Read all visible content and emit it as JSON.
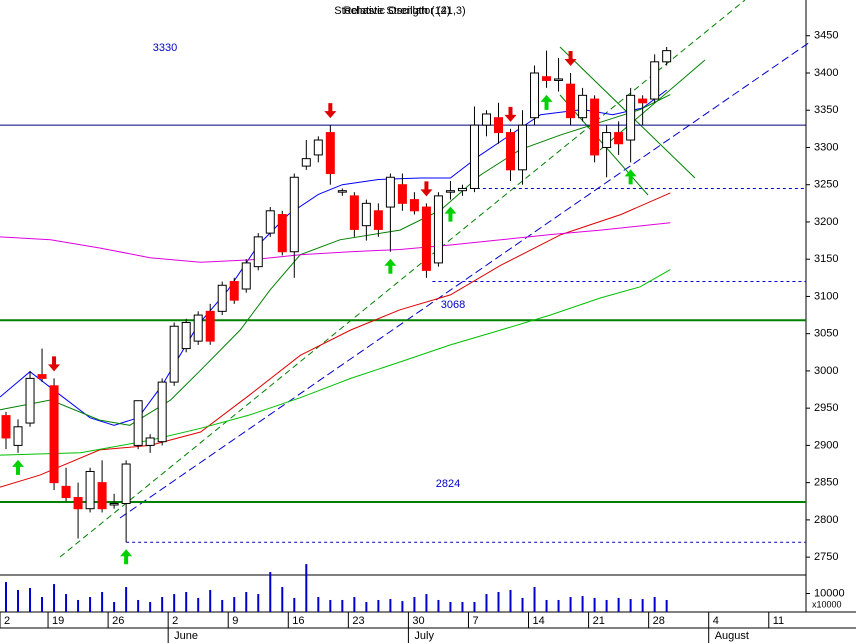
{
  "chart_data": {
    "type": "candlestick",
    "title": "Relative Strength (14)",
    "subtitle": "Stochastic Oscillator (21,3)",
    "ylim": [
      2726,
      3498
    ],
    "yticks": [
      2750,
      2800,
      2850,
      2900,
      2950,
      3000,
      3050,
      3100,
      3150,
      3200,
      3250,
      3300,
      3350,
      3400,
      3450
    ],
    "xlim": [
      -0.5,
      66.6
    ],
    "xticks": [
      {
        "value": -0.5,
        "label": "2"
      },
      {
        "value": 3.5,
        "label": "19"
      },
      {
        "value": 8.5,
        "label": "26"
      },
      {
        "value": 13.5,
        "label": "2"
      },
      {
        "value": 18.5,
        "label": "9"
      },
      {
        "value": 23.5,
        "label": "16"
      },
      {
        "value": 28.5,
        "label": "23"
      },
      {
        "value": 33.5,
        "label": "30"
      },
      {
        "value": 38.5,
        "label": "7"
      },
      {
        "value": 43.5,
        "label": "14"
      },
      {
        "value": 48.5,
        "label": "21"
      },
      {
        "value": 53.5,
        "label": "28"
      },
      {
        "value": 58.5,
        "label": "4"
      },
      {
        "value": 63.5,
        "label": "11"
      }
    ],
    "months": [
      {
        "value": 13.5,
        "label": "June"
      },
      {
        "value": 33.5,
        "label": "July"
      },
      {
        "value": 58.5,
        "label": "August"
      }
    ],
    "up_color": "#ffffff",
    "down_color": "#ff0000",
    "open": [
      2940,
      2900,
      2930,
      2995,
      2980,
      2845,
      2830,
      2815,
      2850,
      2820,
      2822,
      2900,
      2900,
      2905,
      2985,
      3030,
      3040,
      3080,
      3080,
      3120,
      3110,
      3140,
      3185,
      3210,
      3160,
      3275,
      3290,
      3320,
      3240,
      3235,
      3195,
      3215,
      3220,
      3250,
      3230,
      3220,
      3145,
      3240,
      3242,
      3245,
      3330,
      3340,
      3320,
      3270,
      3340,
      3395,
      3390,
      3385,
      3340,
      3365,
      3300,
      3320,
      3310,
      3365,
      3365,
      3415
    ],
    "high": [
      2945,
      2935,
      3000,
      3030,
      2990,
      2870,
      2850,
      2870,
      2880,
      2835,
      2880,
      2960,
      2915,
      2990,
      3065,
      3070,
      3080,
      3090,
      3120,
      3125,
      3150,
      3185,
      3220,
      3215,
      3265,
      3310,
      3315,
      3330,
      3245,
      3240,
      3230,
      3225,
      3265,
      3265,
      3240,
      3225,
      3240,
      3255,
      3250,
      3355,
      3350,
      3360,
      3325,
      3350,
      3410,
      3430,
      3420,
      3400,
      3380,
      3370,
      3330,
      3335,
      3380,
      3370,
      3425,
      3435
    ],
    "low": [
      2895,
      2890,
      2925,
      2985,
      2840,
      2825,
      2775,
      2810,
      2810,
      2815,
      2770,
      2895,
      2890,
      2900,
      2980,
      3025,
      3035,
      3035,
      3075,
      3090,
      3105,
      3135,
      3180,
      3155,
      3125,
      3270,
      3280,
      3250,
      3235,
      3180,
      3175,
      3180,
      3160,
      3215,
      3210,
      3125,
      3140,
      3230,
      3235,
      3240,
      3315,
      3305,
      3255,
      3250,
      3330,
      3380,
      3375,
      3330,
      3335,
      3280,
      3260,
      3290,
      3280,
      3330,
      3360,
      3410
    ],
    "close": [
      2910,
      2925,
      2990,
      2990,
      2850,
      2830,
      2815,
      2865,
      2815,
      2822,
      2875,
      2960,
      2910,
      2985,
      3060,
      3065,
      3075,
      3040,
      3115,
      3095,
      3145,
      3180,
      3215,
      3160,
      3260,
      3285,
      3310,
      3265,
      3242,
      3190,
      3225,
      3190,
      3260,
      3225,
      3215,
      3135,
      3235,
      3242,
      3245,
      3330,
      3345,
      3320,
      3270,
      3330,
      3400,
      3390,
      3392,
      3340,
      3370,
      3290,
      3320,
      3305,
      3370,
      3360,
      3415,
      3430
    ],
    "volume": [
      16200,
      11900,
      13000,
      8100,
      15100,
      9700,
      6500,
      8100,
      10800,
      5400,
      13500,
      6500,
      5400,
      8100,
      9700,
      10800,
      7600,
      11900,
      6500,
      8100,
      10800,
      9700,
      21600,
      13500,
      7600,
      25900,
      8100,
      6500,
      6500,
      8100,
      5400,
      6500,
      7000,
      5900,
      8100,
      9700,
      6500,
      5400,
      5400,
      5400,
      9700,
      10800,
      11900,
      7600,
      13500,
      6500,
      6500,
      8100,
      8600,
      7600,
      6500,
      7600,
      7000,
      7000,
      8100,
      6500
    ],
    "volume_ylim": [
      0,
      20000
    ],
    "volume_ticks": [
      10000
    ],
    "volume_unit": "x10000",
    "overlays": [
      {
        "color": "#0000ff",
        "x": [
          -0.5,
          2,
          4,
          7,
          9,
          11,
          13,
          16,
          18.5,
          21,
          23.5,
          26,
          28,
          31,
          34.5,
          37,
          39.5,
          42,
          44.5,
          48,
          50.5,
          53,
          55
        ],
        "values": [
          2965,
          2999,
          2974,
          2937,
          2927,
          2937,
          2981,
          3062,
          3109,
          3169,
          3210,
          3237,
          3250,
          3257,
          3259,
          3259,
          3290,
          3317,
          3344,
          3351,
          3344,
          3353,
          3377
        ]
      },
      {
        "color": "#008000",
        "x": [
          -0.5,
          3.7,
          7.8,
          10.3,
          13.7,
          16.2,
          19.5,
          22,
          24.5,
          27.8,
          32.8,
          36.2,
          39.5,
          42.8,
          46.2,
          49.5,
          52.8,
          55.3
        ],
        "values": [
          2948,
          2961,
          2934,
          2927,
          2961,
          3001,
          3055,
          3109,
          3156,
          3176,
          3189,
          3216,
          3263,
          3297,
          3317,
          3334,
          3351,
          3371
        ]
      },
      {
        "color": "#e00000",
        "x": [
          -0.5,
          2.8,
          7.8,
          12,
          16.2,
          20.3,
          24.5,
          28.7,
          32.8,
          37,
          41.2,
          46.2,
          51.2,
          55.3
        ],
        "values": [
          2844,
          2860,
          2894,
          2900,
          2918,
          2968,
          3021,
          3055,
          3082,
          3102,
          3142,
          3183,
          3210,
          3239
        ]
      },
      {
        "color": "#00c000",
        "x": [
          -0.5,
          6.2,
          12,
          16.2,
          20.3,
          24.5,
          28.7,
          32.8,
          37,
          41.2,
          45.3,
          49.5,
          52.8,
          55.3
        ],
        "values": [
          2887,
          2890,
          2907,
          2923,
          2941,
          2964,
          2990,
          3012,
          3035,
          3055,
          3075,
          3098,
          3113,
          3136
        ]
      },
      {
        "color": "#e000e0",
        "x": [
          -0.5,
          3.7,
          7.8,
          12,
          16.2,
          20.3,
          24.5,
          28.7,
          32.8,
          37,
          41.2,
          45.3,
          49.5,
          55.3
        ],
        "values": [
          3180,
          3176,
          3165,
          3152,
          3146,
          3149,
          3156,
          3160,
          3163,
          3169,
          3176,
          3183,
          3189,
          3199
        ]
      }
    ],
    "levels": [
      {
        "value": 3330,
        "color": "#000080",
        "width": 1
      },
      {
        "value": 3068,
        "color": "#008000",
        "width": 2
      },
      {
        "value": 2824,
        "color": "#008000",
        "width": 2
      },
      {
        "value": 3245,
        "color": "#0000cc",
        "width": 1,
        "dashed": true,
        "from": 38.7
      },
      {
        "value": 3120,
        "color": "#0000cc",
        "width": 1,
        "dashed": true,
        "from": 35.5
      },
      {
        "value": 2770,
        "color": "#0000cc",
        "width": 1,
        "dashed": true,
        "from": 10
      }
    ],
    "signals": {
      "sell": [
        4,
        27,
        35,
        42,
        47
      ],
      "buy": [
        1,
        10,
        32,
        37,
        45,
        52
      ]
    }
  }
}
